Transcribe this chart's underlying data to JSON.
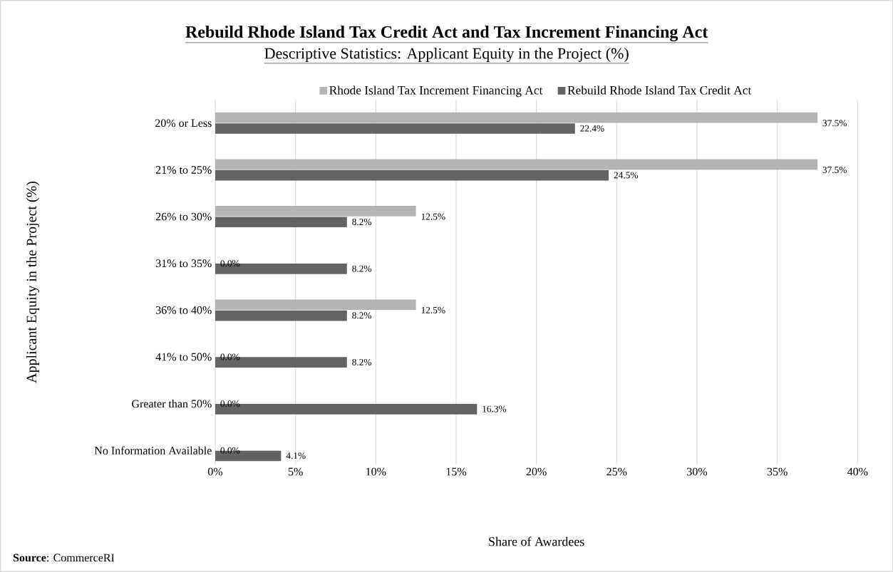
{
  "chart_data": {
    "type": "bar",
    "orientation": "horizontal",
    "title": "Rebuild Rhode Island Tax Credit Act and Tax Increment Financing Act",
    "subtitle": "Descriptive Statistics: Applicant Equity in the Project (%)",
    "xlabel": "Share of Awardees",
    "ylabel": "Applicant Equity in the Project (%)",
    "categories": [
      "20% or Less",
      "21% to 25%",
      "26% to 30%",
      "31% to 35%",
      "36% to 40%",
      "41% to 50%",
      "Greater than 50%",
      "No Information Available"
    ],
    "series": [
      {
        "name": "Rhode Island Tax Increment Financing Act",
        "color": "#b4b4b4",
        "values": [
          37.5,
          37.5,
          12.5,
          0,
          12.5,
          0,
          0,
          0
        ],
        "value_labels": [
          "37.5%",
          "37.5%",
          "12.5%",
          "0.0%",
          "12.5%",
          "0.0%",
          "0.0%",
          "0.0%"
        ]
      },
      {
        "name": "Rebuild Rhode Island Tax Credit Act",
        "color": "#636363",
        "values": [
          22.4,
          24.5,
          8.2,
          8.2,
          8.2,
          8.2,
          16.3,
          4.1
        ],
        "value_labels": [
          "22.4%",
          "24.5%",
          "8.2%",
          "8.2%",
          "8.2%",
          "8.2%",
          "16.3%",
          "4.1%"
        ]
      }
    ],
    "xlim": [
      0,
      40
    ],
    "xticks": [
      {
        "value": 0,
        "label": "0%"
      },
      {
        "value": 5,
        "label": "5%"
      },
      {
        "value": 10,
        "label": "10%"
      },
      {
        "value": 15,
        "label": "15%"
      },
      {
        "value": 20,
        "label": "20%"
      },
      {
        "value": 25,
        "label": "25%"
      },
      {
        "value": 30,
        "label": "30%"
      },
      {
        "value": 35,
        "label": "35%"
      },
      {
        "value": 40,
        "label": "40%"
      }
    ],
    "grid": "x",
    "legend": "top",
    "annotations": [
      "**Source**: CommerceRI"
    ]
  }
}
